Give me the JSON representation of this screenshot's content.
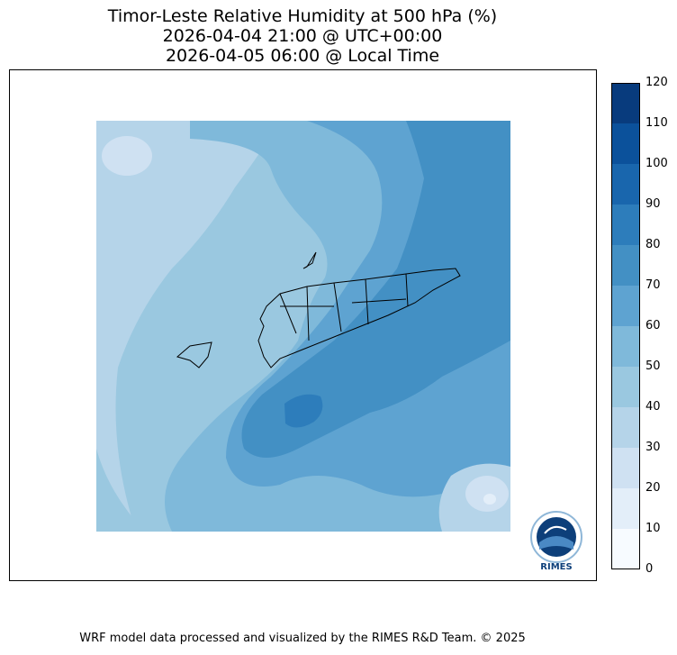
{
  "title": {
    "line1": "Timor-Leste Relative Humidity at 500 hPa (%)",
    "line2": "2026-04-04 21:00 @ UTC+00:00",
    "line3": "2026-04-05 06:00 @ Local Time"
  },
  "colorbar": {
    "ticks": [
      "0",
      "10",
      "20",
      "30",
      "40",
      "50",
      "60",
      "70",
      "80",
      "90",
      "100",
      "110",
      "120"
    ],
    "colors": [
      "#f7fbff",
      "#e3eef9",
      "#cfe1f2",
      "#b5d4e9",
      "#9ac8e0",
      "#7fb9da",
      "#5ea3d1",
      "#4390c4",
      "#2d7dbb",
      "#1966ad",
      "#0b519b",
      "#083b7d"
    ]
  },
  "logo": {
    "text": "RIMES"
  },
  "footer": {
    "text": "WRF model data processed and visualized by the RIMES R&D Team. © 2025"
  }
}
